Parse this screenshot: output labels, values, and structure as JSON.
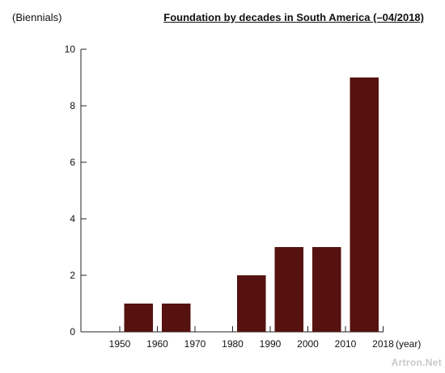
{
  "chart_data": {
    "type": "bar",
    "title": "Foundation by decades in South America (–04/2018)",
    "ylabel": "(Biennials)",
    "xlabel": "(year)",
    "ylim": [
      0,
      10
    ],
    "yticks": [
      0,
      2,
      4,
      6,
      8,
      10
    ],
    "xticks": [
      "1950",
      "1960",
      "1970",
      "1980",
      "1990",
      "2000",
      "2010",
      "2018"
    ],
    "categories": [
      "1950–1960",
      "1960–1970",
      "1970–1980",
      "1980–1990",
      "1990–2000",
      "2000–2010",
      "2010–2018"
    ],
    "values": [
      1,
      1,
      0,
      2,
      3,
      3,
      9
    ],
    "bar_color": "#55120f",
    "grid": false
  },
  "watermark": "Artron.Net"
}
